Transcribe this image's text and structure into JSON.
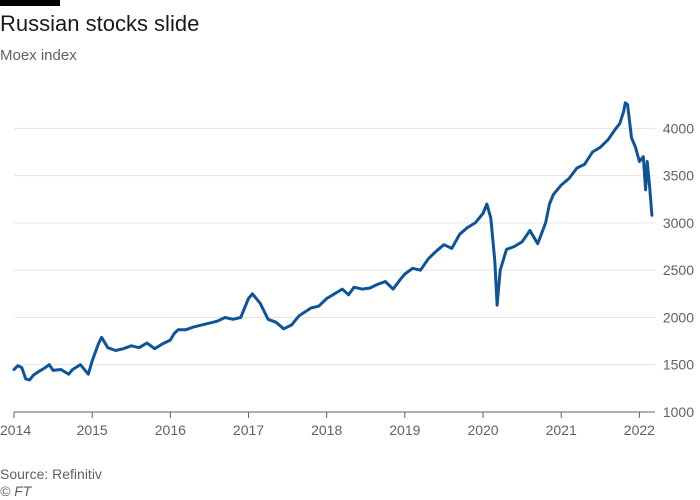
{
  "chart_data": {
    "type": "line",
    "title": "Russian stocks slide",
    "subtitle": "Moex index",
    "xlabel": "",
    "ylabel": "",
    "x_ticks": [
      "2014",
      "2015",
      "2016",
      "2017",
      "2018",
      "2019",
      "2020",
      "2021",
      "2022"
    ],
    "y_ticks": [
      1000,
      1500,
      2000,
      2500,
      3000,
      3500,
      4000
    ],
    "ylim": [
      1000,
      4300
    ],
    "xlim": [
      2014.0,
      2022.2
    ],
    "grid": true,
    "y_axis_side": "right",
    "series": [
      {
        "color": "#0f5499",
        "x": [
          2014.0,
          2014.05,
          2014.1,
          2014.15,
          2014.2,
          2014.25,
          2014.3,
          2014.4,
          2014.45,
          2014.5,
          2014.6,
          2014.7,
          2014.75,
          2014.85,
          2014.95,
          2015.0,
          2015.08,
          2015.12,
          2015.2,
          2015.3,
          2015.4,
          2015.5,
          2015.6,
          2015.7,
          2015.8,
          2015.9,
          2016.0,
          2016.05,
          2016.1,
          2016.2,
          2016.3,
          2016.45,
          2016.55,
          2016.6,
          2016.7,
          2016.8,
          2016.9,
          2017.0,
          2017.05,
          2017.15,
          2017.25,
          2017.35,
          2017.45,
          2017.55,
          2017.65,
          2017.8,
          2017.9,
          2018.0,
          2018.1,
          2018.2,
          2018.28,
          2018.35,
          2018.45,
          2018.55,
          2018.65,
          2018.75,
          2018.85,
          2018.95,
          2019.0,
          2019.1,
          2019.2,
          2019.3,
          2019.4,
          2019.5,
          2019.6,
          2019.7,
          2019.8,
          2019.9,
          2020.0,
          2020.05,
          2020.1,
          2020.15,
          2020.18,
          2020.22,
          2020.3,
          2020.4,
          2020.5,
          2020.6,
          2020.7,
          2020.8,
          2020.85,
          2020.9,
          2021.0,
          2021.1,
          2021.2,
          2021.3,
          2021.4,
          2021.5,
          2021.6,
          2021.7,
          2021.75,
          2021.8,
          2021.82,
          2021.85,
          2021.9,
          2021.95,
          2022.0,
          2022.05,
          2022.08,
          2022.1,
          2022.13,
          2022.16
        ],
        "values": [
          1450,
          1490,
          1470,
          1350,
          1340,
          1390,
          1420,
          1470,
          1500,
          1440,
          1450,
          1400,
          1450,
          1500,
          1400,
          1540,
          1720,
          1790,
          1680,
          1650,
          1670,
          1700,
          1680,
          1730,
          1670,
          1720,
          1760,
          1830,
          1870,
          1870,
          1900,
          1930,
          1950,
          1960,
          2000,
          1980,
          2000,
          2200,
          2250,
          2150,
          1980,
          1950,
          1880,
          1920,
          2020,
          2100,
          2120,
          2200,
          2250,
          2300,
          2240,
          2320,
          2300,
          2310,
          2350,
          2380,
          2300,
          2410,
          2460,
          2520,
          2500,
          2620,
          2700,
          2770,
          2730,
          2880,
          2950,
          3000,
          3100,
          3200,
          3050,
          2600,
          2130,
          2500,
          2720,
          2750,
          2800,
          2920,
          2780,
          3000,
          3200,
          3300,
          3400,
          3470,
          3580,
          3620,
          3750,
          3800,
          3880,
          4000,
          4050,
          4180,
          4270,
          4250,
          3900,
          3800,
          3650,
          3700,
          3350,
          3650,
          3400,
          3080
        ]
      }
    ]
  },
  "footer": {
    "source": "Source: Refinitiv",
    "credit": "© FT"
  }
}
